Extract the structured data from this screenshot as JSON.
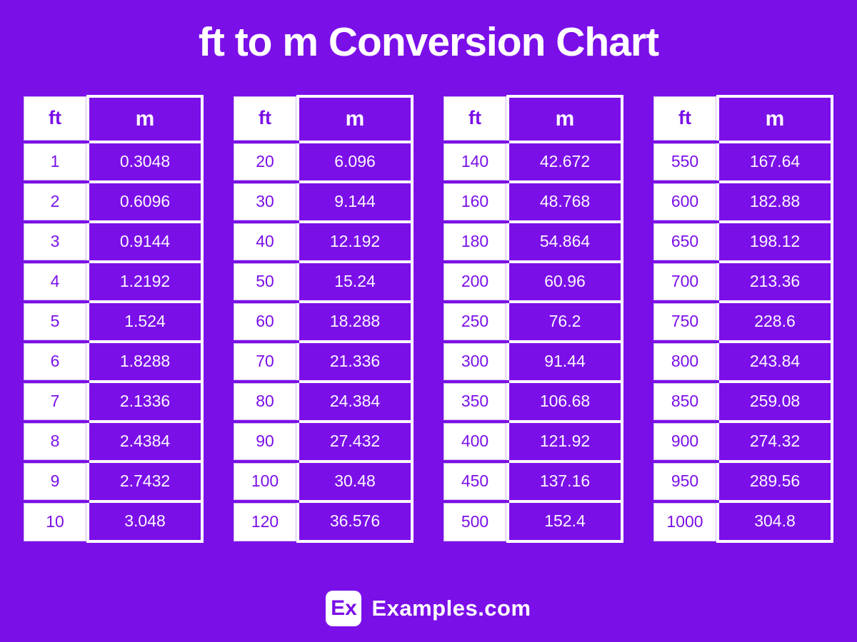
{
  "title": "ft to m Conversion Chart",
  "colors": {
    "purple": "#7B0FE8",
    "white": "#FFFFFF"
  },
  "footer": {
    "logo": "Ex",
    "brand": "Examples.com"
  },
  "chart_data": {
    "type": "table",
    "title": "ft to m Conversion Chart",
    "columns": [
      "ft",
      "m"
    ],
    "tables": [
      {
        "rows": [
          [
            "1",
            "0.3048"
          ],
          [
            "2",
            "0.6096"
          ],
          [
            "3",
            "0.9144"
          ],
          [
            "4",
            "1.2192"
          ],
          [
            "5",
            "1.524"
          ],
          [
            "6",
            "1.8288"
          ],
          [
            "7",
            "2.1336"
          ],
          [
            "8",
            "2.4384"
          ],
          [
            "9",
            "2.7432"
          ],
          [
            "10",
            "3.048"
          ]
        ]
      },
      {
        "rows": [
          [
            "20",
            "6.096"
          ],
          [
            "30",
            "9.144"
          ],
          [
            "40",
            "12.192"
          ],
          [
            "50",
            "15.24"
          ],
          [
            "60",
            "18.288"
          ],
          [
            "70",
            "21.336"
          ],
          [
            "80",
            "24.384"
          ],
          [
            "90",
            "27.432"
          ],
          [
            "100",
            "30.48"
          ],
          [
            "120",
            "36.576"
          ]
        ]
      },
      {
        "rows": [
          [
            "140",
            "42.672"
          ],
          [
            "160",
            "48.768"
          ],
          [
            "180",
            "54.864"
          ],
          [
            "200",
            "60.96"
          ],
          [
            "250",
            "76.2"
          ],
          [
            "300",
            "91.44"
          ],
          [
            "350",
            "106.68"
          ],
          [
            "400",
            "121.92"
          ],
          [
            "450",
            "137.16"
          ],
          [
            "500",
            "152.4"
          ]
        ]
      },
      {
        "rows": [
          [
            "550",
            "167.64"
          ],
          [
            "600",
            "182.88"
          ],
          [
            "650",
            "198.12"
          ],
          [
            "700",
            "213.36"
          ],
          [
            "750",
            "228.6"
          ],
          [
            "800",
            "243.84"
          ],
          [
            "850",
            "259.08"
          ],
          [
            "900",
            "274.32"
          ],
          [
            "950",
            "289.56"
          ],
          [
            "1000",
            "304.8"
          ]
        ]
      }
    ]
  }
}
